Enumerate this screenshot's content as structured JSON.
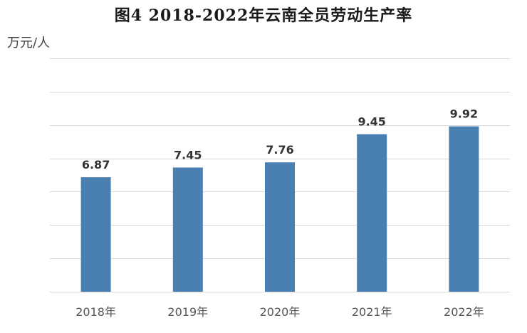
{
  "chart_data": {
    "type": "bar",
    "title": "图4  2018-2022年云南全员劳动生产率",
    "ylabel": "万元/人",
    "xlabel": "",
    "categories": [
      "2018年",
      "2019年",
      "2020年",
      "2021年",
      "2022年"
    ],
    "values": [
      6.87,
      7.45,
      7.76,
      9.45,
      9.92
    ],
    "data_labels": [
      "6.87",
      "7.45",
      "7.76",
      "9.45",
      "9.92"
    ],
    "ylim": [
      0,
      14
    ],
    "grid": true,
    "legend": "none",
    "bar_color": "#4a7fb2"
  }
}
